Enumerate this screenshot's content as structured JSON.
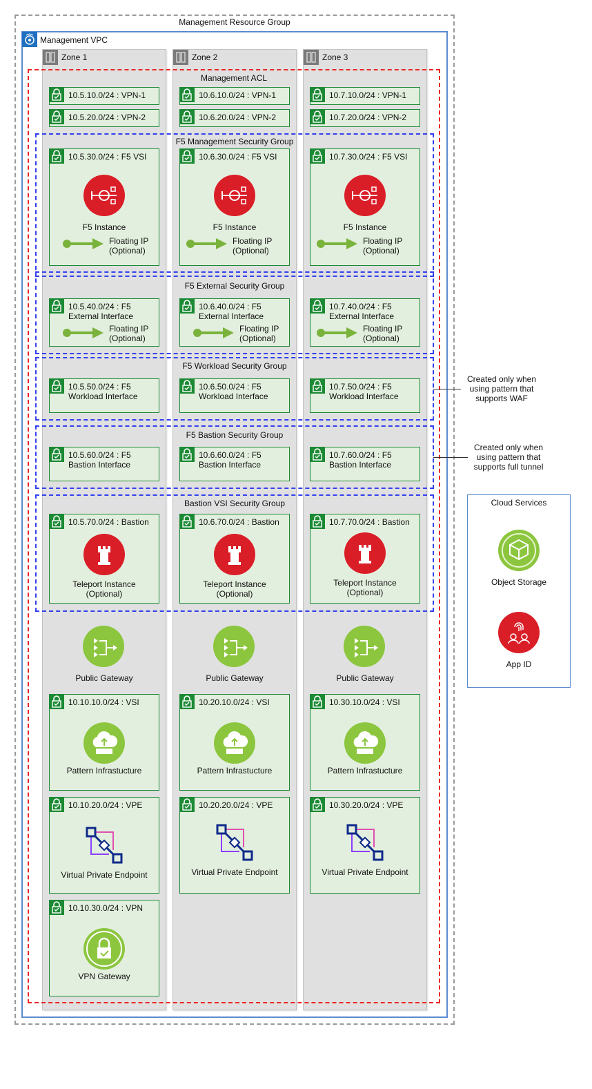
{
  "resource_group": {
    "title": "Management Resource Group"
  },
  "vpc": {
    "title": "Management VPC"
  },
  "zones": [
    {
      "label": "Zone 1"
    },
    {
      "label": "Zone 2"
    },
    {
      "label": "Zone 3"
    }
  ],
  "acl": {
    "title": "Management ACL"
  },
  "security_groups": {
    "f5_management": "F5 Management Security Group",
    "f5_external": "F5 External Security Group",
    "f5_workload": "F5 Workload Security Group",
    "f5_bastion": "F5 Bastion Security Group",
    "bastion_vsi": "Bastion VSI Security Group"
  },
  "subnets": {
    "vpn1": [
      "10.5.10.0/24 : VPN-1",
      "10.6.10.0/24 : VPN-1",
      "10.7.10.0/24 : VPN-1"
    ],
    "vpn2": [
      "10.5.20.0/24 : VPN-2",
      "10.6.20.0/24 : VPN-2",
      "10.7.20.0/24 : VPN-2"
    ],
    "f5vsi": [
      "10.5.30.0/24 : F5 VSI",
      "10.6.30.0/24 : F5 VSI",
      "10.7.30.0/24 : F5 VSI"
    ],
    "external": [
      "10.5.40.0/24 : F5 External Interface",
      "10.6.40.0/24 : F5 External Interface",
      "10.7.40.0/24 : F5 External Interface"
    ],
    "workload": [
      "10.5.50.0/24 : F5 Workload Interface",
      "10.6.50.0/24 : F5 Workload Interface",
      "10.7.50.0/24 : F5 Workload Interface"
    ],
    "bastion_iface": [
      "10.5.60.0/24 : F5 Bastion Interface",
      "10.6.60.0/24 : F5 Bastion Interface",
      "10.7.60.0/24 : F5 Bastion Interface"
    ],
    "bastion": [
      "10.5.70.0/24 : Bastion",
      "10.6.70.0/24 : Bastion",
      "10.7.70.0/24 : Bastion"
    ],
    "vsi": [
      "10.10.10.0/24 : VSI",
      "10.20.10.0/24 : VSI",
      "10.30.10.0/24 : VSI"
    ],
    "vpe": [
      "10.10.20.0/24 : VPE",
      "10.20.20.0/24 : VPE",
      "10.30.20.0/24 : VPE"
    ],
    "vpn": "10.10.30.0/24 : VPN"
  },
  "labels": {
    "f5_instance": "F5 Instance",
    "floating_ip_1": "Floating IP",
    "floating_ip_2": "(Optional)",
    "teleport_1": "Teleport Instance",
    "teleport_2": "(Optional)",
    "public_gateway": "Public Gateway",
    "pattern_infra": "Pattern Infrastucture",
    "vpe": "Virtual Private Endpoint",
    "vpn_gateway": "VPN Gateway"
  },
  "notes": {
    "waf": [
      "Created only when",
      "using pattern that",
      "supports WAF"
    ],
    "full_tunnel": [
      "Created only when",
      "using pattern that",
      "supports full tunnel"
    ]
  },
  "cloud_services": {
    "title": "Cloud Services",
    "object_storage": "Object Storage",
    "app_id": "App ID"
  },
  "colors": {
    "subnet_green": "#1c8a34",
    "subnet_fill": "#e3efde",
    "acl_red": "#ee2222",
    "sg_blue": "#3340ee",
    "vpc_blue": "#5b8bd1",
    "f5_red": "#da1e28",
    "gateway_green": "#8cc63f"
  }
}
